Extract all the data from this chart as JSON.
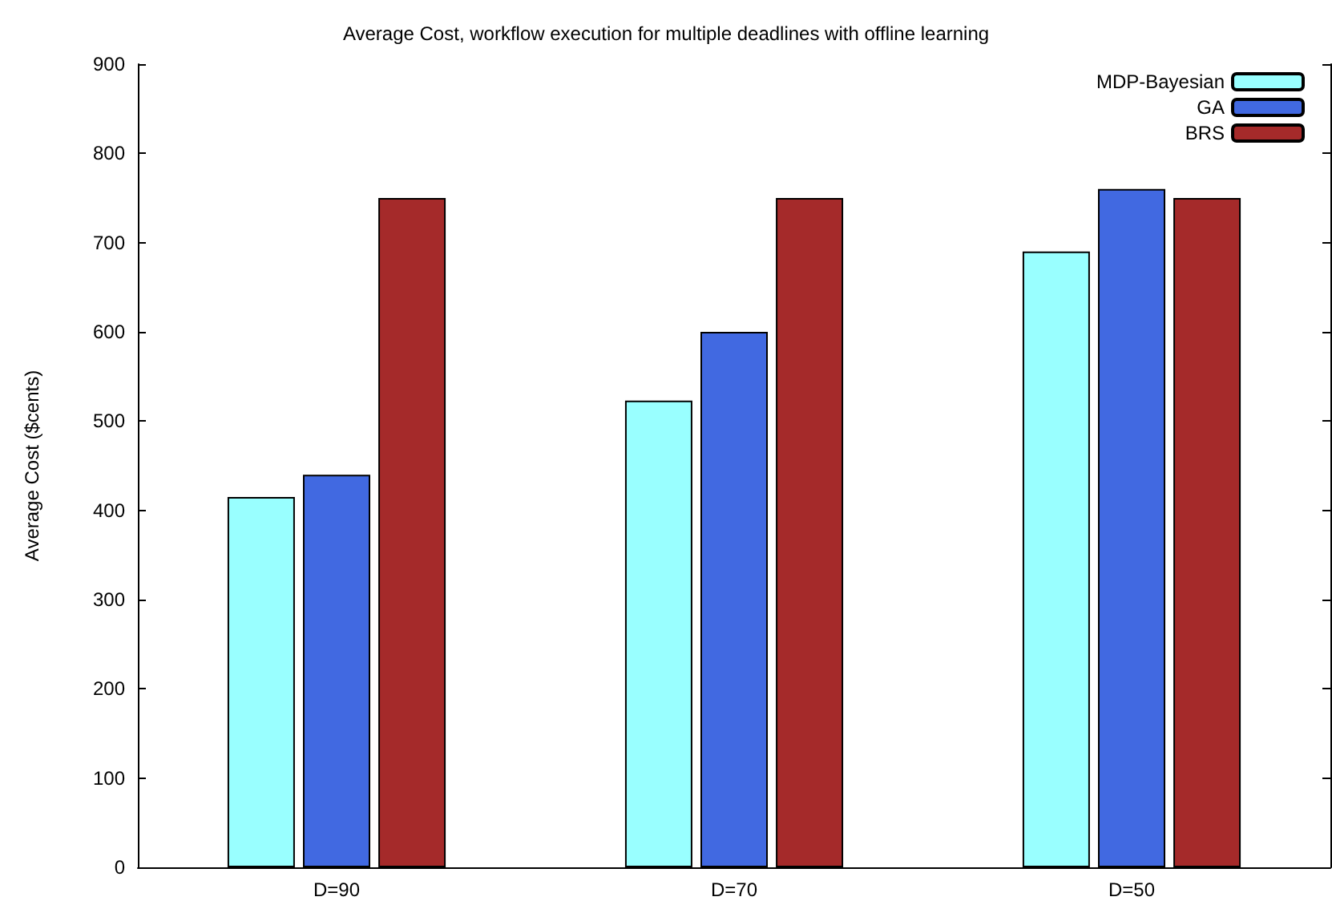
{
  "chart_data": {
    "type": "bar",
    "title": "Average Cost, workflow execution for multiple deadlines with offline learning",
    "ylabel": "Average Cost ($cents)",
    "categories": [
      "D=90",
      "D=70",
      "D=50"
    ],
    "series": [
      {
        "name": "MDP-Bayesian",
        "color": "#99ffff",
        "values": [
          415,
          523,
          690
        ]
      },
      {
        "name": "GA",
        "color": "#4169e1",
        "values": [
          440,
          600,
          760
        ]
      },
      {
        "name": "BRS",
        "color": "#a52a2a",
        "values": [
          750,
          750,
          750
        ]
      }
    ],
    "ylim": [
      0,
      900
    ],
    "yticks": [
      0,
      100,
      200,
      300,
      400,
      500,
      600,
      700,
      800,
      900
    ],
    "grid": false,
    "legend": "top right"
  }
}
